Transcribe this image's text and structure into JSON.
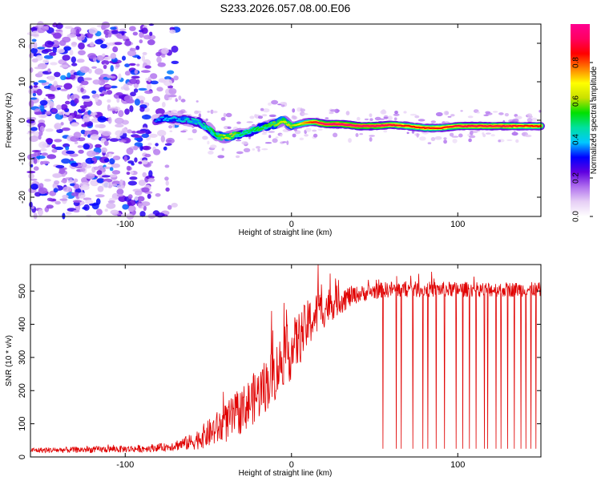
{
  "title": "S233.2026.057.08.00.E06",
  "chart_data": [
    {
      "type": "heatmap",
      "name": "spectrogram",
      "xlabel": "Height of straight line (km)",
      "ylabel": "Frequency (Hz)",
      "xlim": [
        -157,
        150
      ],
      "ylim": [
        -25,
        25
      ],
      "xticks": [
        -100,
        0,
        100
      ],
      "yticks": [
        20,
        10,
        0,
        -10,
        -20
      ],
      "xtick_labels": [
        "-100",
        "0",
        "100"
      ],
      "ytick_labels": [
        "20",
        "10",
        "0",
        "-10",
        "-20"
      ],
      "colorbar": {
        "label": "Normalized spectral amplitude",
        "range": [
          0,
          1
        ],
        "ticks": [
          0,
          0.2,
          0.4,
          0.6,
          0.8
        ],
        "tick_labels": [
          "0.0",
          "0.2",
          "0.4",
          "0.6",
          "0.8"
        ],
        "colors": [
          "#ffffff",
          "#e6cff5",
          "#b070ee",
          "#6000e0",
          "#0000ff",
          "#00c8ff",
          "#00e0a0",
          "#00e000",
          "#c8e000",
          "#ffff00",
          "#ff8000",
          "#ff0000",
          "#ff0060",
          "#ff0090"
        ]
      },
      "signal_track": {
        "x": [
          -82,
          -75,
          -68,
          -62,
          -56,
          -50,
          -45,
          -40,
          -35,
          -30,
          -25,
          -20,
          -15,
          -10,
          -5,
          0,
          5,
          10,
          15,
          20,
          30,
          40,
          50,
          60,
          70,
          80,
          90,
          100,
          110,
          120,
          130,
          140,
          150
        ],
        "freq_hz": [
          0,
          0.5,
          0.3,
          0,
          -0.5,
          -2,
          -4,
          -4.5,
          -4,
          -3.5,
          -3,
          -2,
          -1.5,
          -1,
          0,
          -1.5,
          -1,
          -0.5,
          -0.5,
          -1,
          -1,
          -1.5,
          -1.5,
          -1.2,
          -1.5,
          -2,
          -2,
          -1.5,
          -1.5,
          -1.5,
          -1.5,
          -1.5,
          -1.5
        ],
        "strength": [
          0.35,
          0.4,
          0.4,
          0.45,
          0.45,
          0.5,
          0.55,
          0.65,
          0.6,
          0.5,
          0.5,
          0.55,
          0.55,
          0.6,
          0.65,
          0.6,
          0.7,
          0.8,
          0.9,
          0.95,
          0.95,
          0.95,
          0.95,
          0.9,
          0.85,
          0.85,
          0.85,
          0.9,
          0.9,
          0.9,
          0.9,
          0.85,
          0.85
        ]
      },
      "noise_region_x": [
        -157,
        -75
      ]
    },
    {
      "type": "line",
      "name": "snr",
      "xlabel": "Height of straight line (km)",
      "ylabel": "SNR (10 * v/v)",
      "xlim": [
        -157,
        150
      ],
      "ylim": [
        0,
        580
      ],
      "xticks": [
        -100,
        0,
        100
      ],
      "yticks": [
        0,
        100,
        200,
        300,
        400,
        500
      ],
      "xtick_labels": [
        "-100",
        "0",
        "100"
      ],
      "ytick_labels": [
        "0",
        "100",
        "200",
        "300",
        "400",
        "500"
      ],
      "color": "#e00000",
      "envelope": {
        "x": [
          -157,
          -120,
          -90,
          -75,
          -60,
          -50,
          -40,
          -30,
          -20,
          -10,
          -5,
          0,
          5,
          10,
          15,
          20,
          25,
          30,
          40,
          50,
          60,
          80,
          100,
          120,
          150
        ],
        "y": [
          20,
          22,
          25,
          30,
          45,
          70,
          100,
          140,
          190,
          250,
          300,
          320,
          360,
          400,
          430,
          450,
          465,
          475,
          490,
          500,
          505,
          505,
          505,
          505,
          505
        ]
      },
      "noise_amp": {
        "x": [
          -157,
          -75,
          -60,
          -40,
          -20,
          0,
          20,
          40,
          150
        ],
        "y": [
          8,
          12,
          25,
          60,
          80,
          90,
          60,
          25,
          22
        ]
      },
      "spikes": [
        {
          "x": 16,
          "y": 580
        },
        {
          "x": 18,
          "y": 520
        },
        {
          "x": -12,
          "y": 440
        }
      ],
      "dropouts": [
        55,
        63,
        66,
        73,
        79,
        82,
        87,
        92,
        99,
        103,
        107,
        111,
        116,
        118,
        123,
        126,
        130,
        134,
        138,
        141,
        144,
        147
      ],
      "dropout_min": [
        25,
        25,
        25,
        25,
        25,
        25,
        25,
        25,
        25,
        25,
        25,
        25,
        25,
        25,
        25,
        25,
        25,
        25,
        25,
        25,
        25,
        25
      ]
    }
  ]
}
